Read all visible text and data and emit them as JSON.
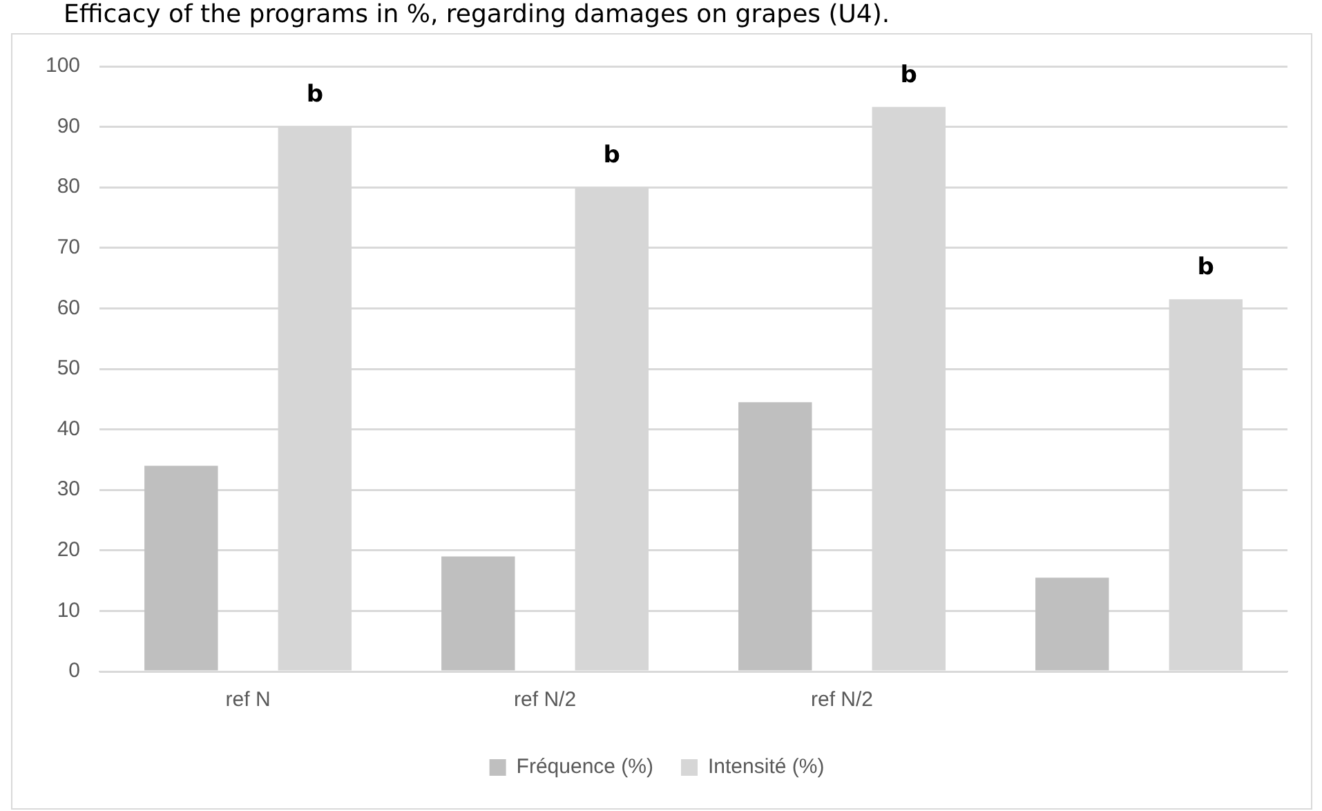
{
  "chart_data": {
    "type": "bar",
    "title": "Efficacy of the programs in %, regarding damages on grapes (U4).",
    "categories": [
      "ref N",
      "ref N/2",
      "ref N/2",
      null
    ],
    "series": [
      {
        "name": "Fréquence (%)",
        "color": "#bfbfbf",
        "values": [
          34,
          19,
          44.5,
          15.5
        ]
      },
      {
        "name": "Intensité (%)",
        "color": "#d6d6d6",
        "values": [
          90,
          80,
          93.3,
          61.5
        ]
      }
    ],
    "annotations": [
      "b",
      "b",
      "b",
      "b"
    ],
    "ylim": [
      0,
      100
    ],
    "yticks": [
      0,
      10,
      20,
      30,
      40,
      50,
      60,
      70,
      80,
      90,
      100
    ],
    "grid": "y",
    "legend": "bottom"
  }
}
